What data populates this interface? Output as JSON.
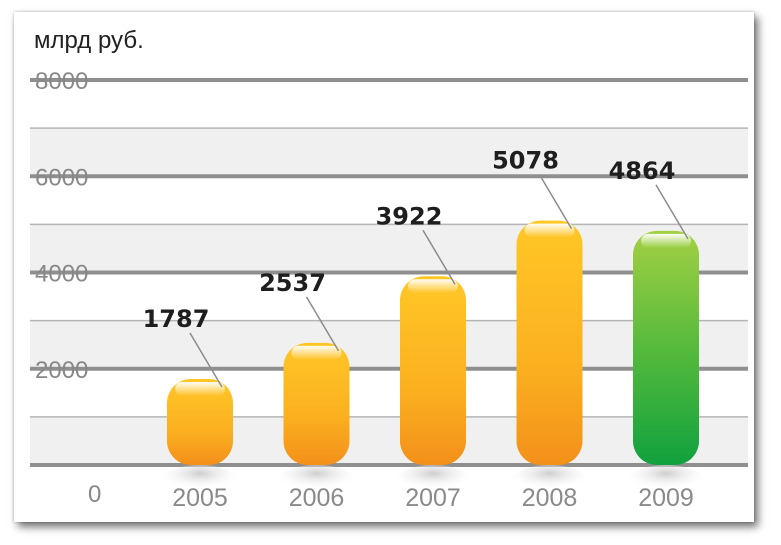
{
  "chart_data": {
    "type": "bar",
    "unit_label": "млрд руб.",
    "categories": [
      "2005",
      "2006",
      "2007",
      "2008",
      "2009"
    ],
    "values": [
      1787,
      2537,
      3922,
      5078,
      4864
    ],
    "ylim": [
      0,
      8000
    ],
    "yticks": [
      0,
      2000,
      4000,
      6000,
      8000
    ],
    "grid": true,
    "legend": "none",
    "colors": {
      "orange_top": "#ffc020",
      "orange_bottom": "#f39a1a",
      "green_top": "#9ccc3c",
      "green_bottom": "#15a43d",
      "band": "#f0f0f0",
      "gridline": "#8f8f8f"
    }
  }
}
